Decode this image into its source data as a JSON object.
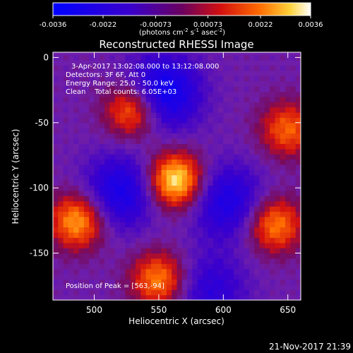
{
  "colorbar": {
    "ticks": [
      "-0.0036",
      "-0.0022",
      "-0.00073",
      "0.00073",
      "0.0022",
      "0.0036"
    ],
    "tick_values": [
      -0.0036,
      -0.0022,
      -0.00073,
      0.00073,
      0.0022,
      0.0036
    ],
    "units_prefix": "(photons cm",
    "units_sup1": "-2",
    "units_mid": " s",
    "units_sup2": "-1",
    "units_mid2": " asec",
    "units_sup3": "-2",
    "units_suffix": ")"
  },
  "chart_data": {
    "type": "heatmap",
    "title": "Reconstructed RHESSI Image",
    "xlabel": "Heliocentric X (arcsec)",
    "ylabel": "Heliocentric Y (arcsec)",
    "xlim": [
      468,
      660
    ],
    "ylim": [
      -186,
      4
    ],
    "x_ticks": [
      "500",
      "550",
      "600",
      "650"
    ],
    "x_tick_values": [
      500,
      550,
      600,
      650
    ],
    "y_ticks": [
      "0",
      "-50",
      "-100",
      "-150"
    ],
    "y_tick_values": [
      0,
      -50,
      -100,
      -150
    ],
    "peak": [
      563,
      -94
    ],
    "bright_sources": [
      {
        "x": 563,
        "y": -94,
        "amp": 1.0
      },
      {
        "x": 530,
        "y": -40,
        "amp": 0.75
      },
      {
        "x": 487,
        "y": -125,
        "amp": 0.8
      },
      {
        "x": 550,
        "y": -170,
        "amp": 0.7
      },
      {
        "x": 640,
        "y": -128,
        "amp": 0.7
      },
      {
        "x": 650,
        "y": -55,
        "amp": 0.6
      }
    ],
    "dark_sources": [
      {
        "x": 553,
        "y": -27,
        "amp": -0.75
      },
      {
        "x": 520,
        "y": -103,
        "amp": -0.6
      },
      {
        "x": 603,
        "y": -110,
        "amp": -0.55
      },
      {
        "x": 590,
        "y": -178,
        "amp": -0.4
      }
    ]
  },
  "annotations": {
    "time_range": "3-Apr-2017 13:02:08.000 to 13:12:08.000",
    "detectors": "Detectors: 3F 6F, Att 0",
    "energy": "Energy Range: 25.0 - 50.0 keV",
    "clean": "Clean    Total counts: 6.05E+03",
    "peak_label": "Position of Peak = [563,-94]"
  },
  "footer": {
    "timestamp": "21-Nov-2017 21:39"
  }
}
